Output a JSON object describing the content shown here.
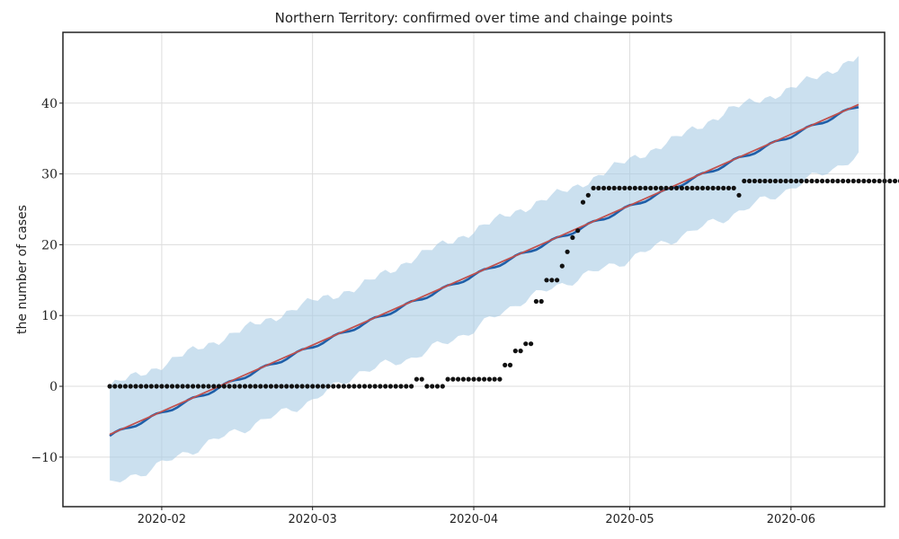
{
  "chart_data": {
    "type": "line",
    "title": "Northern Territory: confirmed over time and chainge points",
    "xlabel": "",
    "ylabel": "the number of cases",
    "x_range": [
      "2020-01-13",
      "2020-06-19"
    ],
    "ylim": [
      -17,
      50
    ],
    "x_ticks": [
      "2020-02-01",
      "2020-03-01",
      "2020-04-01",
      "2020-05-01",
      "2020-06-01"
    ],
    "x_tick_labels": [
      "2020-02",
      "2020-03",
      "2020-04",
      "2020-05",
      "2020-06"
    ],
    "y_ticks": [
      -10,
      0,
      10,
      20,
      30,
      40
    ],
    "y_tick_labels": [
      "−10",
      "0",
      "10",
      "20",
      "30",
      "40"
    ],
    "grid": true,
    "colors": {
      "observed": "#111111",
      "forecast": "#1f5fa8",
      "trend": "#c0504d",
      "uncertainty": "#a8cce4"
    },
    "observed": {
      "start_date": "2020-01-22",
      "end_date": "2020-06-01",
      "values": [
        0,
        0,
        0,
        0,
        0,
        0,
        0,
        0,
        0,
        0,
        0,
        0,
        0,
        0,
        0,
        0,
        0,
        0,
        0,
        0,
        0,
        0,
        0,
        0,
        0,
        0,
        0,
        0,
        0,
        0,
        0,
        0,
        0,
        0,
        0,
        0,
        0,
        0,
        0,
        0,
        0,
        0,
        0,
        0,
        0,
        0,
        0,
        0,
        0,
        0,
        0,
        0,
        0,
        0,
        0,
        0,
        0,
        0,
        0,
        1,
        1,
        0,
        0,
        0,
        0,
        1,
        1,
        1,
        1,
        1,
        1,
        1,
        1,
        1,
        1,
        1,
        3,
        3,
        5,
        5,
        6,
        6,
        12,
        12,
        15,
        15,
        15,
        17,
        19,
        21,
        22,
        26,
        27,
        28,
        28,
        28,
        28,
        28,
        28,
        28,
        28,
        28,
        28,
        28,
        28,
        28,
        28,
        28,
        28,
        28,
        28,
        28,
        28,
        28,
        28,
        28,
        28,
        28,
        28,
        28,
        28,
        27,
        29,
        29,
        29,
        29,
        29,
        29,
        29,
        29,
        29,
        29,
        29,
        29,
        29,
        29,
        29,
        29,
        29,
        29,
        29,
        29,
        29,
        29,
        29,
        29,
        29,
        29,
        29,
        29,
        29,
        29,
        29,
        29,
        29,
        29,
        29,
        29
      ]
    },
    "forecast": {
      "start_date": "2020-01-22",
      "end_date": "2020-06-14",
      "start_value": -7,
      "end_value": 39.6
    },
    "trend": {
      "start_date": "2020-01-22",
      "end_date": "2020-06-14",
      "start_value": -6.8,
      "end_value": 39.8
    },
    "uncertainty_interval": {
      "dates": [
        "2020-01-22",
        "2020-02-01",
        "2020-02-10",
        "2020-02-20",
        "2020-03-01",
        "2020-03-10",
        "2020-03-20",
        "2020-04-01",
        "2020-04-10",
        "2020-04-20",
        "2020-05-01",
        "2020-05-10",
        "2020-05-20",
        "2020-06-01",
        "2020-06-14"
      ],
      "upper": [
        0,
        3,
        6,
        9,
        12,
        14,
        18,
        22,
        25,
        28,
        32,
        35,
        39,
        42,
        46.5
      ],
      "lower": [
        -14,
        -11,
        -8,
        -5,
        -2,
        2,
        4,
        8,
        12,
        15,
        18,
        21,
        24,
        28,
        32.5
      ]
    }
  }
}
